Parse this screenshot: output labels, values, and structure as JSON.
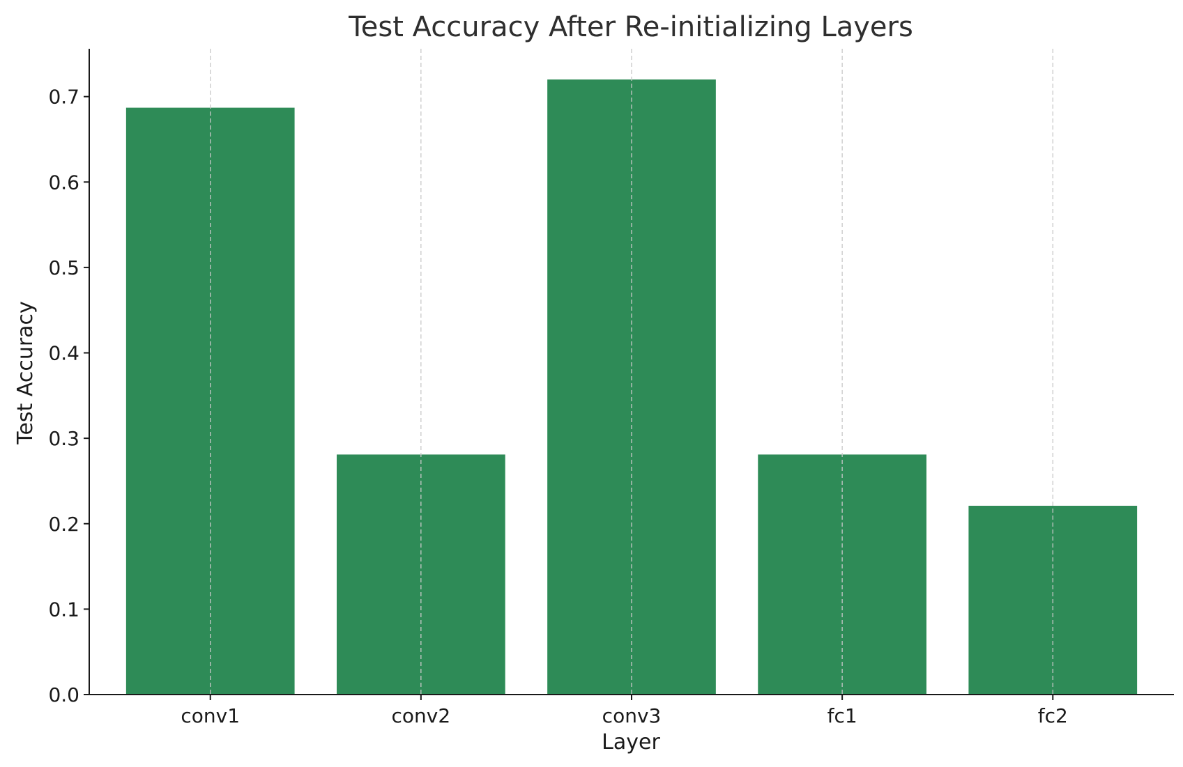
{
  "chart_data": {
    "type": "bar",
    "title": "Test Accuracy After Re-initializing Layers",
    "xlabel": "Layer",
    "ylabel": "Test Accuracy",
    "categories": [
      "conv1",
      "conv2",
      "conv3",
      "fc1",
      "fc2"
    ],
    "values": [
      0.687,
      0.281,
      0.72,
      0.281,
      0.221
    ],
    "ylim": [
      0,
      0.756
    ],
    "yticks": [
      "0.0",
      "0.1",
      "0.2",
      "0.3",
      "0.4",
      "0.5",
      "0.6",
      "0.7"
    ],
    "grid": "vertical-dashed",
    "bar_color": "#2e8b57",
    "grid_color": "#c8c8c8"
  }
}
